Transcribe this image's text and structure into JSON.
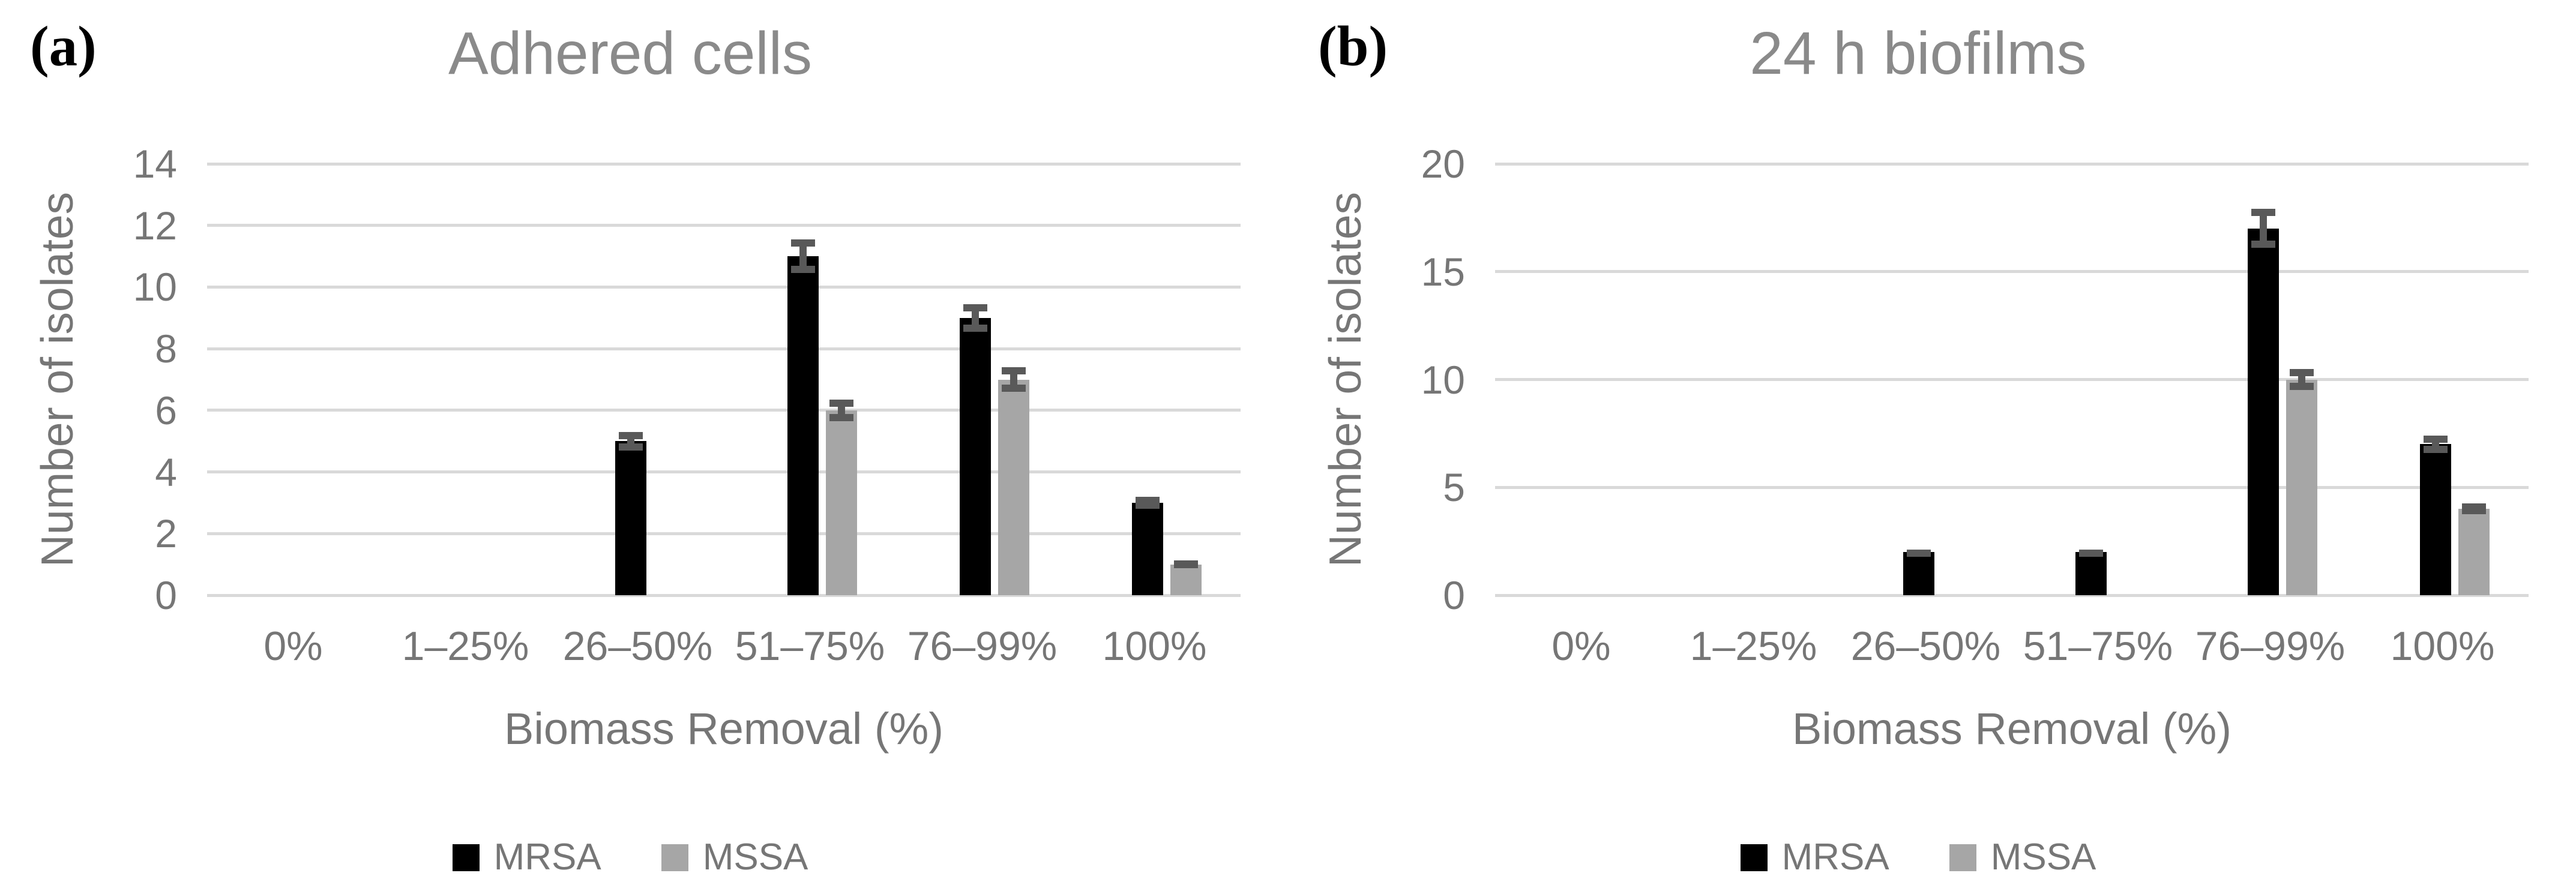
{
  "colors": {
    "background": "#ffffff",
    "gridline": "#d9d9d9",
    "error_bar": "#595959",
    "axis_text": "#767676",
    "title_text": "#8a8a8a",
    "mrsa": "#000000",
    "mssa": "#a6a6a6"
  },
  "chart_data": [
    {
      "type": "bar",
      "panel_label": "(a)",
      "title": "Adhered cells",
      "xlabel": "Biomass Removal (%)",
      "ylabel": "Number of isolates",
      "categories": [
        "0%",
        "1–25%",
        "26–50%",
        "51–75%",
        "76–99%",
        "100%"
      ],
      "series": [
        {
          "name": "MRSA",
          "color": "#000000",
          "values": [
            0,
            0,
            5,
            11,
            9,
            3
          ],
          "errors": [
            0,
            0,
            0.3,
            0.55,
            0.45,
            0.2
          ]
        },
        {
          "name": "MSSA",
          "color": "#a6a6a6",
          "values": [
            0,
            0,
            0,
            6,
            7,
            1
          ],
          "errors": [
            0,
            0,
            0,
            0.35,
            0.4,
            0.12
          ]
        }
      ],
      "ylim": [
        0,
        14
      ],
      "ytick_step": 2,
      "grid": true,
      "legend_position": "bottom"
    },
    {
      "type": "bar",
      "panel_label": "(b)",
      "title": "24 h biofilms",
      "xlabel": "Biomass Removal (%)",
      "ylabel": "Number of isolates",
      "categories": [
        "0%",
        "1–25%",
        "26–50%",
        "51–75%",
        "76–99%",
        "100%"
      ],
      "series": [
        {
          "name": "MRSA",
          "color": "#000000",
          "values": [
            0,
            0,
            2,
            2,
            17,
            7
          ],
          "errors": [
            0,
            0,
            0.12,
            0.12,
            0.9,
            0.4
          ]
        },
        {
          "name": "MSSA",
          "color": "#a6a6a6",
          "values": [
            0,
            0,
            0,
            0,
            10,
            4
          ],
          "errors": [
            0,
            0,
            0,
            0,
            0.5,
            0.25
          ]
        }
      ],
      "ylim": [
        0,
        20
      ],
      "ytick_step": 5,
      "grid": true,
      "legend_position": "bottom"
    }
  ]
}
